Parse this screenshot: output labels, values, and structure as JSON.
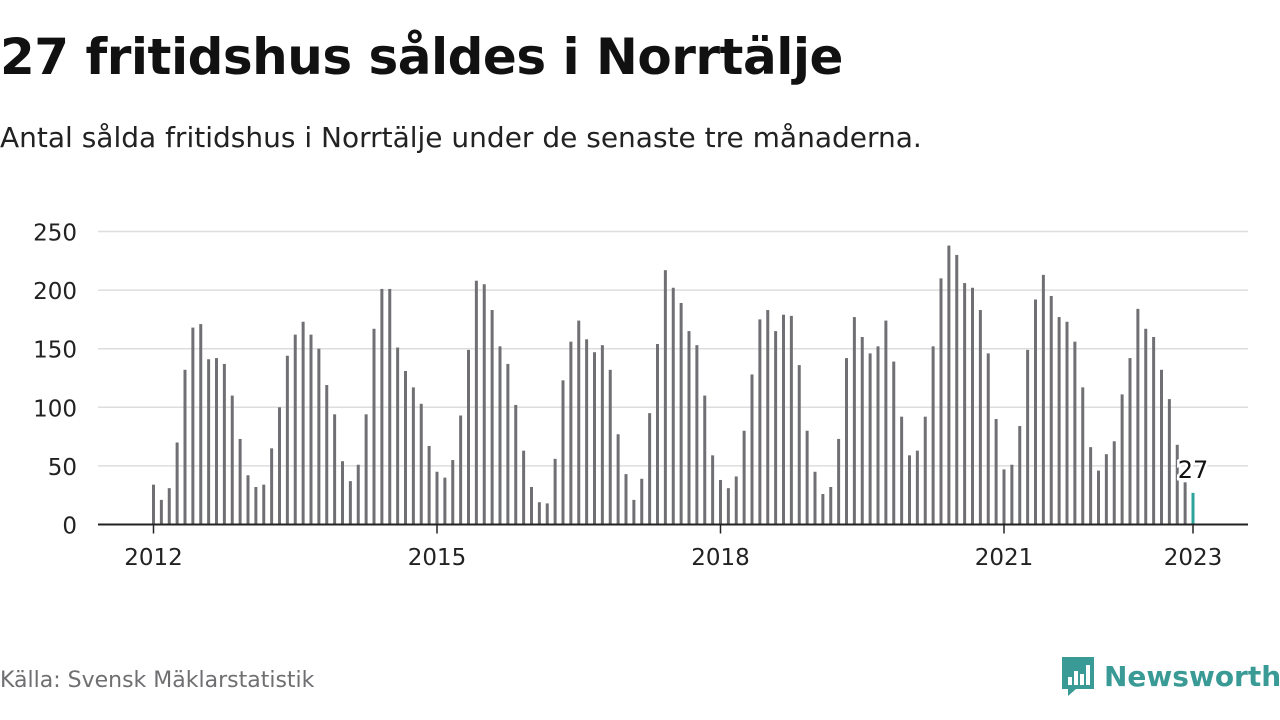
{
  "header": {
    "title": "27 fritidshus såldes i Norrtälje",
    "subtitle": "Antal sålda fritidshus i Norrtälje under de senaste tre månaderna."
  },
  "footer": {
    "source": "Källa: Svensk Mäklarstatistik",
    "brand": "Newsworthy",
    "brand_icon": "bar-chart-logo-icon"
  },
  "colors": {
    "bar": "#707074",
    "highlight": "#2ea39c",
    "grid": "#dddddd",
    "axis": "#222222",
    "brand": "#3a9a95"
  },
  "chart_data": {
    "type": "bar",
    "frequency": "monthly",
    "x_start": "2012-01",
    "x_end": "2023-01",
    "ylim": [
      0,
      250
    ],
    "yticks": [
      0,
      50,
      100,
      150,
      200,
      250
    ],
    "xticks": [
      "2012",
      "2015",
      "2018",
      "2021",
      "2023"
    ],
    "grid": true,
    "legend": "none",
    "highlight": {
      "x": "2023-01",
      "value": 27,
      "label": "27"
    },
    "values": [
      34,
      21,
      31,
      70,
      132,
      168,
      171,
      141,
      142,
      137,
      110,
      73,
      42,
      32,
      34,
      65,
      100,
      144,
      162,
      173,
      162,
      150,
      119,
      94,
      54,
      37,
      51,
      94,
      167,
      201,
      201,
      151,
      131,
      117,
      103,
      67,
      45,
      40,
      55,
      93,
      149,
      208,
      205,
      183,
      152,
      137,
      102,
      63,
      32,
      19,
      18,
      56,
      123,
      156,
      174,
      158,
      147,
      153,
      132,
      77,
      43,
      21,
      39,
      95,
      154,
      217,
      202,
      189,
      165,
      153,
      110,
      59,
      38,
      31,
      41,
      80,
      128,
      175,
      183,
      165,
      179,
      178,
      136,
      80,
      45,
      26,
      32,
      73,
      142,
      177,
      160,
      146,
      152,
      174,
      139,
      92,
      59,
      63,
      92,
      152,
      210,
      238,
      230,
      206,
      202,
      183,
      146,
      90,
      47,
      51,
      84,
      149,
      192,
      213,
      195,
      177,
      173,
      156,
      117,
      66,
      46,
      60,
      71,
      111,
      142,
      184,
      167,
      160,
      132,
      107,
      68,
      36,
      27
    ]
  }
}
